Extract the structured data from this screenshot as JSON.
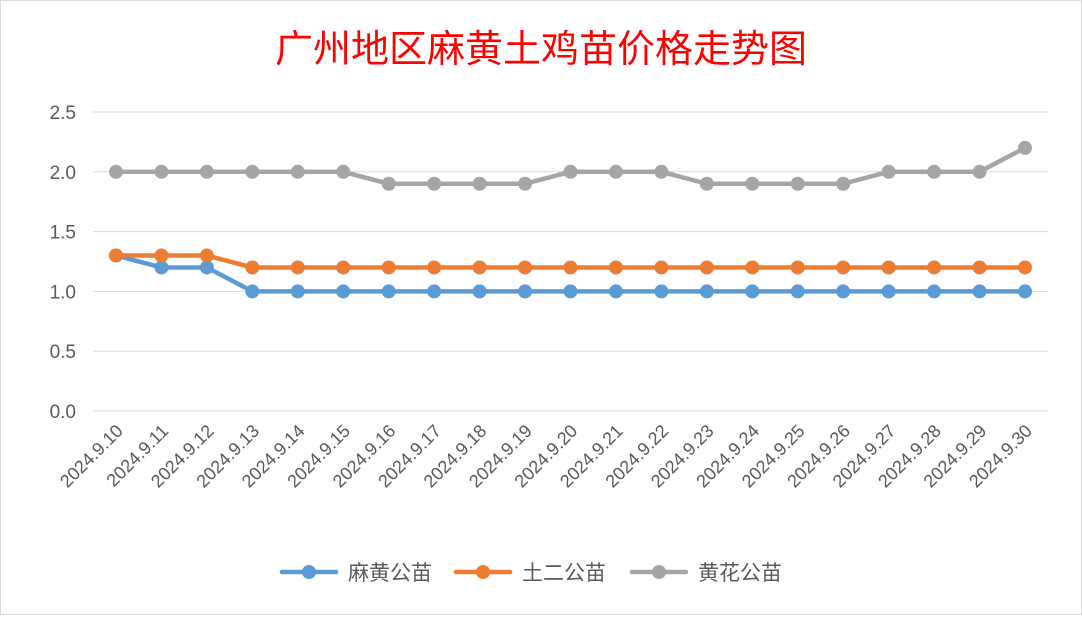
{
  "chart_data": {
    "type": "line",
    "title": "广州地区麻黄土鸡苗价格走势图",
    "xlabel": "",
    "ylabel": "",
    "ylim": [
      0,
      2.5
    ],
    "yticks": [
      "0.0",
      "0.5",
      "1.0",
      "1.5",
      "2.0",
      "2.5"
    ],
    "grid": true,
    "legend": "bottom",
    "categories": [
      "2024.9.10",
      "2024.9.11",
      "2024.9.12",
      "2024.9.13",
      "2024.9.14",
      "2024.9.15",
      "2024.9.16",
      "2024.9.17",
      "2024.9.18",
      "2024.9.19",
      "2024.9.20",
      "2024.9.21",
      "2024.9.22",
      "2024.9.23",
      "2024.9.24",
      "2024.9.25",
      "2024.9.26",
      "2024.9.27",
      "2024.9.28",
      "2024.9.29",
      "2024.9.30"
    ],
    "series": [
      {
        "name": "麻黄公苗",
        "color": "#5b9bd5",
        "values": [
          1.3,
          1.2,
          1.2,
          1.0,
          1.0,
          1.0,
          1.0,
          1.0,
          1.0,
          1.0,
          1.0,
          1.0,
          1.0,
          1.0,
          1.0,
          1.0,
          1.0,
          1.0,
          1.0,
          1.0,
          1.0
        ]
      },
      {
        "name": "土二公苗",
        "color": "#ed7d31",
        "values": [
          1.3,
          1.3,
          1.3,
          1.2,
          1.2,
          1.2,
          1.2,
          1.2,
          1.2,
          1.2,
          1.2,
          1.2,
          1.2,
          1.2,
          1.2,
          1.2,
          1.2,
          1.2,
          1.2,
          1.2,
          1.2
        ]
      },
      {
        "name": "黄花公苗",
        "color": "#a5a5a5",
        "values": [
          2.0,
          2.0,
          2.0,
          2.0,
          2.0,
          2.0,
          1.9,
          1.9,
          1.9,
          1.9,
          2.0,
          2.0,
          2.0,
          1.9,
          1.9,
          1.9,
          1.9,
          2.0,
          2.0,
          2.0,
          2.2
        ]
      }
    ],
    "colors": {
      "title": "#ff0000",
      "grid": "#d9d9d9",
      "axis_text": "#595959",
      "border": "#d9d9d9"
    }
  }
}
